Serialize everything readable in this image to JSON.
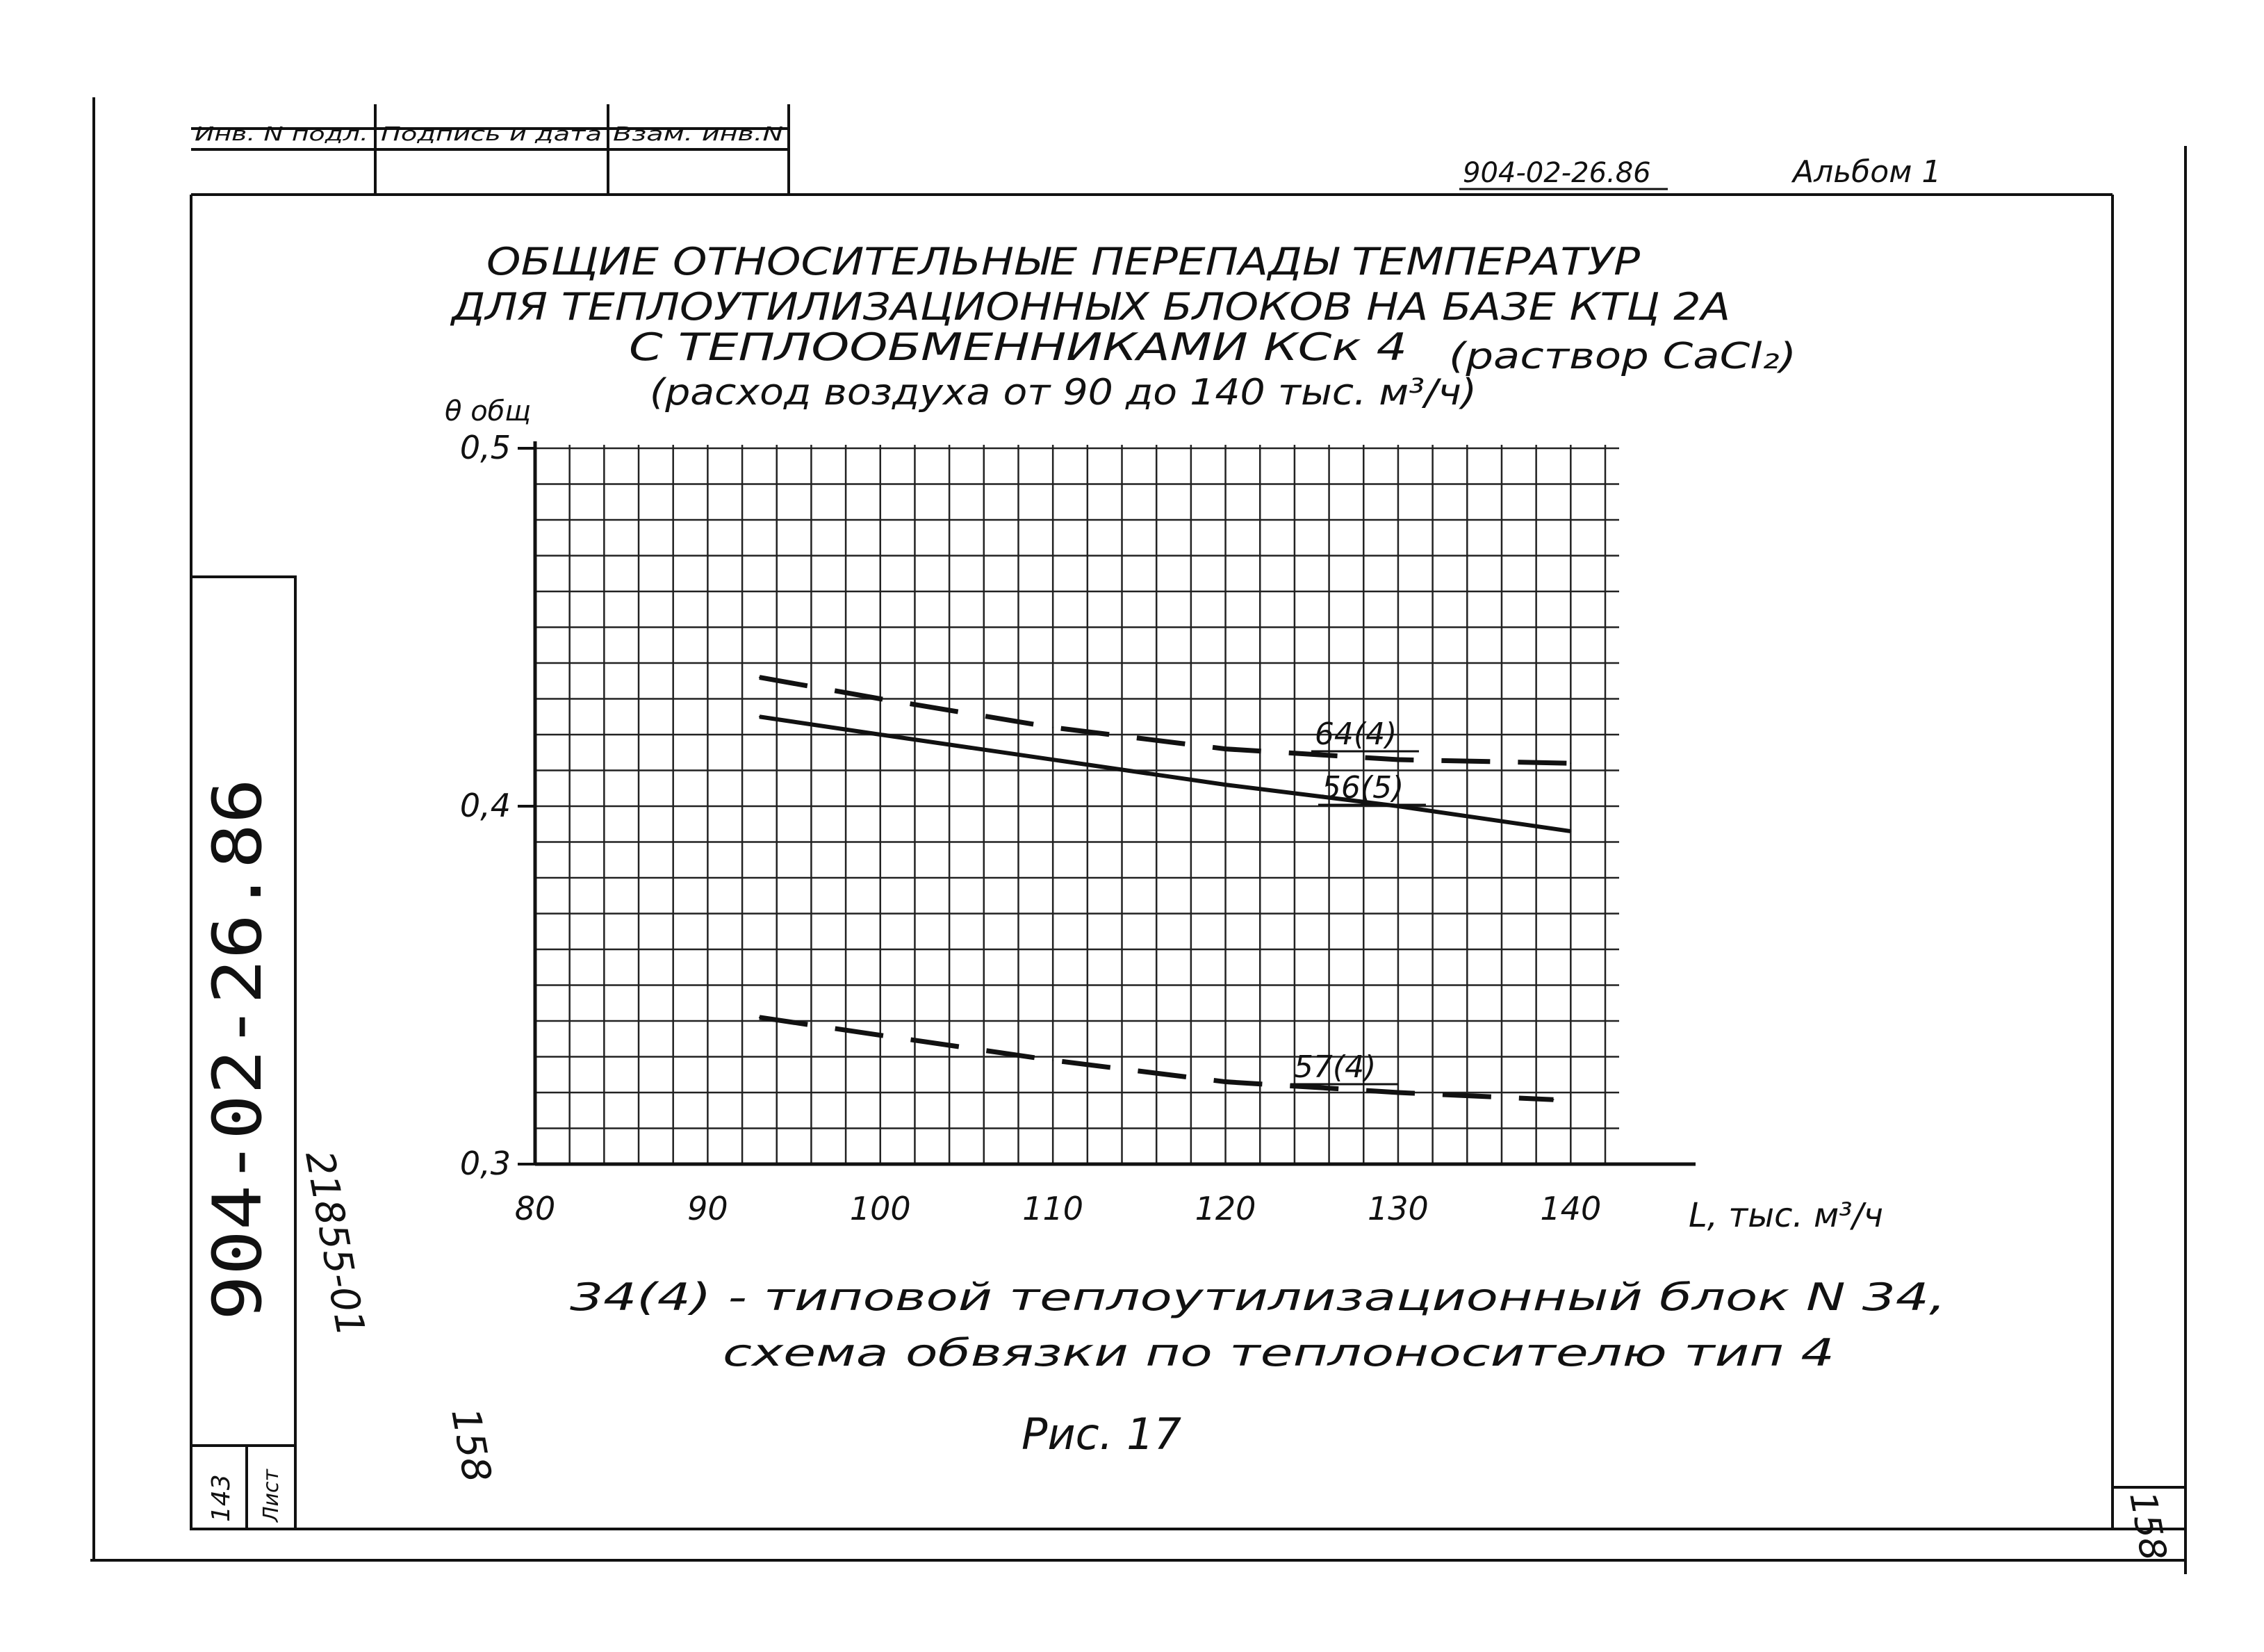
{
  "stamp": {
    "cells": [
      "Инв. N подл.",
      "Подпись и дата",
      "Взам. инв.N"
    ]
  },
  "header": {
    "doc_code": "904-02-26.86",
    "album": "Альбом 1"
  },
  "side": {
    "vertical_code": "904-02-26.86",
    "registration": "21855-01",
    "sheet_label": "Лист",
    "sheet_number": "143"
  },
  "page_marks": {
    "near_caption": "158",
    "corner": "158"
  },
  "chart_data": {
    "type": "line",
    "title_lines": [
      "ОБЩИЕ ОТНОСИТЕЛЬНЫЕ ПЕРЕПАДЫ ТЕМПЕРАТУР",
      "ДЛЯ ТЕПЛОУТИЛИЗАЦИОННЫХ БЛОКОВ НА БАЗЕ КТЦ 2А",
      "С ТЕПЛООБМЕННИКАМИ КСк 4",
      "(раствор CaCl₂)",
      "(расход воздуха от 90 до 140 тыс. м³/ч)"
    ],
    "ylabel": "θ общ",
    "xlabel": "L, тыс. м³/ч",
    "xlim": [
      80,
      142
    ],
    "ylim": [
      0.3,
      0.5
    ],
    "x_ticks": [
      80,
      90,
      100,
      110,
      120,
      130,
      140
    ],
    "x_tick_labels": [
      "80",
      "90",
      "100",
      "110",
      "120",
      "130",
      "140"
    ],
    "y_ticks": [
      0.3,
      0.4,
      0.5
    ],
    "y_tick_labels": [
      "0,3",
      "0,4",
      "0,5"
    ],
    "grid": true,
    "series": [
      {
        "name": "64(4)",
        "style": "dashed",
        "x": [
          93,
          100,
          110,
          120,
          130,
          140
        ],
        "y": [
          0.436,
          0.43,
          0.422,
          0.416,
          0.413,
          0.412
        ]
      },
      {
        "name": "56(5)",
        "style": "solid",
        "x": [
          93,
          100,
          110,
          120,
          130,
          140
        ],
        "y": [
          0.425,
          0.42,
          0.413,
          0.406,
          0.4,
          0.393
        ]
      },
      {
        "name": "57(4)",
        "style": "dashed",
        "x": [
          93,
          100,
          110,
          120,
          130,
          139
        ],
        "y": [
          0.341,
          0.336,
          0.329,
          0.323,
          0.32,
          0.318
        ]
      }
    ],
    "legend_note_lines": [
      "34(4) - типовой теплоутилизационный блок N 34,",
      "схема обвязки по теплоносителю тип 4"
    ],
    "figure_caption": "Рис. 17"
  }
}
